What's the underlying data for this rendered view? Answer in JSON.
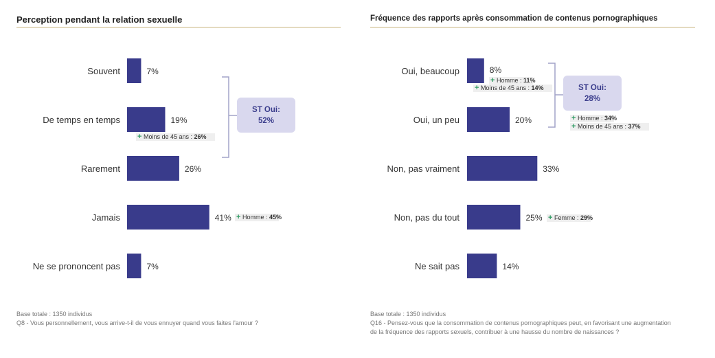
{
  "chart_data": [
    {
      "type": "bar",
      "orientation": "horizontal",
      "title": "Perception pendant la relation sexuelle",
      "categories": [
        "Souvent",
        "De temps en temps",
        "Rarement",
        "Jamais",
        "Ne se prononcent pas"
      ],
      "values": [
        7,
        19,
        26,
        41,
        7
      ],
      "value_labels": [
        "7%",
        "19%",
        "26%",
        "41%",
        "7%"
      ],
      "annotations": [
        {
          "category": "De temps en temps",
          "label": "Moins de 45 ans : ",
          "value": "26%"
        },
        {
          "category": "Jamais",
          "label": "Homme : ",
          "value": "45%"
        }
      ],
      "subtotal": {
        "categories": [
          "Souvent",
          "De temps en temps",
          "Rarement"
        ],
        "title": "ST Oui:",
        "value": "52%"
      },
      "bar_color": "#393b8b",
      "base": "Base totale : 1350 individus",
      "question": "Q8 - Vous personnellement, vous arrive-t-il de vous ennuyer quand vous faites l'amour ?"
    },
    {
      "type": "bar",
      "orientation": "horizontal",
      "title": "Fréquence des rapports après consommation de contenus pornographiques",
      "categories": [
        "Oui, beaucoup",
        "Oui, un peu",
        "Non, pas vraiment",
        "Non, pas du tout",
        "Ne sait pas"
      ],
      "values": [
        8,
        20,
        33,
        25,
        14
      ],
      "value_labels": [
        "8%",
        "20%",
        "33%",
        "25%",
        "14%"
      ],
      "annotations": [
        {
          "category": "Oui, beaucoup",
          "label": "Homme : ",
          "value": "11%"
        },
        {
          "category": "Oui, beaucoup",
          "label": "Moins de 45 ans : ",
          "value": "14%"
        },
        {
          "category": "Non, pas du tout",
          "label": "Femme : ",
          "value": "29%"
        }
      ],
      "subtotal": {
        "categories": [
          "Oui, beaucoup",
          "Oui, un peu"
        ],
        "title": "ST Oui:",
        "value": "28%",
        "annotations": [
          {
            "label": "Homme : ",
            "value": "34%"
          },
          {
            "label": "Moins de 45 ans : ",
            "value": "37%"
          }
        ]
      },
      "bar_color": "#393b8b",
      "base": "Base totale : 1350 individus",
      "question": "Q16 - Pensez-vous que la consommation de contenus pornographiques peut, en favorisant une augmentation de la fréquence des rapports sexuels, contribuer à une hausse du nombre de naissances ?"
    }
  ]
}
